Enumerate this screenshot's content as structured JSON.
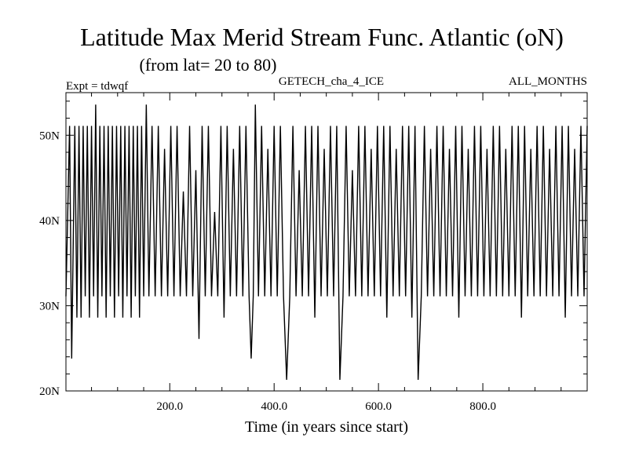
{
  "chart_data": {
    "type": "line",
    "title": "Latitude Max Merid Stream Func. Atlantic (oN)",
    "subtitle": "(from lat= 20 to 80)",
    "header_left": "Expt = tdwqf",
    "header_center": "GETECH_cha_4_ICE",
    "header_right": "ALL_MONTHS",
    "xlabel": "Time (in years since start)",
    "ylabel": "",
    "xlim": [
      1,
      1000
    ],
    "ylim": [
      20,
      55
    ],
    "xticks": [
      200,
      400,
      600,
      800
    ],
    "xtick_labels": [
      "200.0",
      "400.0",
      "600.0",
      "800.0"
    ],
    "yticks": [
      20,
      30,
      40,
      50
    ],
    "ytick_labels": [
      "20N",
      "30N",
      "40N",
      "50N"
    ],
    "grid": false,
    "levels_observed": [
      21.3,
      23.8,
      26.1,
      28.6,
      31.1,
      33.5,
      36.0,
      38.5,
      41.0,
      43.4,
      45.9,
      48.4,
      51.1,
      53.6
    ],
    "series": [
      {
        "values_approx": [
          [
            1,
            31.1
          ],
          [
            8,
            51.1
          ],
          [
            12,
            23.8
          ],
          [
            18,
            51.1
          ],
          [
            22,
            28.6
          ],
          [
            26,
            51.1
          ],
          [
            30,
            28.6
          ],
          [
            34,
            51.1
          ],
          [
            38,
            31.1
          ],
          [
            42,
            51.1
          ],
          [
            46,
            28.6
          ],
          [
            50,
            51.1
          ],
          [
            54,
            31.1
          ],
          [
            58,
            53.6
          ],
          [
            62,
            28.6
          ],
          [
            66,
            51.1
          ],
          [
            70,
            31.1
          ],
          [
            74,
            51.1
          ],
          [
            78,
            28.6
          ],
          [
            82,
            51.1
          ],
          [
            86,
            31.1
          ],
          [
            90,
            51.1
          ],
          [
            94,
            28.6
          ],
          [
            98,
            51.1
          ],
          [
            102,
            31.1
          ],
          [
            106,
            51.1
          ],
          [
            110,
            28.6
          ],
          [
            114,
            51.1
          ],
          [
            118,
            31.1
          ],
          [
            122,
            51.1
          ],
          [
            126,
            28.6
          ],
          [
            130,
            51.1
          ],
          [
            134,
            31.1
          ],
          [
            138,
            51.1
          ],
          [
            142,
            28.6
          ],
          [
            146,
            51.1
          ],
          [
            150,
            31.1
          ],
          [
            155,
            53.6
          ],
          [
            160,
            31.1
          ],
          [
            166,
            51.1
          ],
          [
            172,
            31.1
          ],
          [
            178,
            51.1
          ],
          [
            184,
            31.1
          ],
          [
            190,
            48.4
          ],
          [
            196,
            31.1
          ],
          [
            202,
            51.1
          ],
          [
            208,
            31.1
          ],
          [
            214,
            51.1
          ],
          [
            220,
            31.1
          ],
          [
            226,
            43.4
          ],
          [
            232,
            31.1
          ],
          [
            238,
            51.1
          ],
          [
            244,
            31.1
          ],
          [
            250,
            45.9
          ],
          [
            256,
            26.1
          ],
          [
            262,
            51.1
          ],
          [
            268,
            31.1
          ],
          [
            274,
            51.1
          ],
          [
            280,
            31.1
          ],
          [
            286,
            41.0
          ],
          [
            292,
            31.1
          ],
          [
            298,
            51.1
          ],
          [
            304,
            28.6
          ],
          [
            310,
            51.1
          ],
          [
            316,
            31.1
          ],
          [
            322,
            48.4
          ],
          [
            328,
            31.1
          ],
          [
            334,
            51.1
          ],
          [
            340,
            31.1
          ],
          [
            346,
            51.1
          ],
          [
            352,
            31.1
          ],
          [
            356,
            23.8
          ],
          [
            360,
            31.1
          ],
          [
            364,
            53.6
          ],
          [
            370,
            31.1
          ],
          [
            376,
            51.1
          ],
          [
            382,
            31.1
          ],
          [
            388,
            48.4
          ],
          [
            394,
            31.1
          ],
          [
            400,
            51.1
          ],
          [
            406,
            31.1
          ],
          [
            412,
            51.1
          ],
          [
            418,
            31.1
          ],
          [
            424,
            21.3
          ],
          [
            430,
            31.1
          ],
          [
            436,
            51.1
          ],
          [
            442,
            31.1
          ],
          [
            448,
            45.9
          ],
          [
            454,
            31.1
          ],
          [
            460,
            51.1
          ],
          [
            466,
            31.1
          ],
          [
            472,
            51.1
          ],
          [
            478,
            28.6
          ],
          [
            484,
            51.1
          ],
          [
            490,
            31.1
          ],
          [
            496,
            48.4
          ],
          [
            502,
            31.1
          ],
          [
            508,
            51.1
          ],
          [
            514,
            31.1
          ],
          [
            520,
            51.1
          ],
          [
            526,
            21.3
          ],
          [
            532,
            31.1
          ],
          [
            538,
            51.1
          ],
          [
            544,
            31.1
          ],
          [
            550,
            45.9
          ],
          [
            556,
            31.1
          ],
          [
            562,
            51.1
          ],
          [
            568,
            31.1
          ],
          [
            574,
            51.1
          ],
          [
            580,
            31.1
          ],
          [
            586,
            48.4
          ],
          [
            592,
            31.1
          ],
          [
            598,
            51.1
          ],
          [
            604,
            31.1
          ],
          [
            610,
            51.1
          ],
          [
            616,
            28.6
          ],
          [
            622,
            51.1
          ],
          [
            628,
            31.1
          ],
          [
            634,
            48.4
          ],
          [
            640,
            31.1
          ],
          [
            646,
            51.1
          ],
          [
            652,
            31.1
          ],
          [
            658,
            51.1
          ],
          [
            664,
            28.6
          ],
          [
            670,
            51.1
          ],
          [
            676,
            21.3
          ],
          [
            682,
            31.1
          ],
          [
            688,
            51.1
          ],
          [
            694,
            31.1
          ],
          [
            700,
            48.4
          ],
          [
            706,
            31.1
          ],
          [
            712,
            51.1
          ],
          [
            718,
            31.1
          ],
          [
            724,
            51.1
          ],
          [
            730,
            31.1
          ],
          [
            736,
            48.4
          ],
          [
            742,
            31.1
          ],
          [
            748,
            51.1
          ],
          [
            754,
            28.6
          ],
          [
            760,
            51.1
          ],
          [
            766,
            31.1
          ],
          [
            772,
            48.4
          ],
          [
            778,
            31.1
          ],
          [
            784,
            51.1
          ],
          [
            790,
            31.1
          ],
          [
            796,
            51.1
          ],
          [
            802,
            31.1
          ],
          [
            808,
            48.4
          ],
          [
            814,
            31.1
          ],
          [
            820,
            51.1
          ],
          [
            826,
            31.1
          ],
          [
            832,
            51.1
          ],
          [
            838,
            31.1
          ],
          [
            844,
            48.4
          ],
          [
            850,
            31.1
          ],
          [
            856,
            51.1
          ],
          [
            862,
            31.1
          ],
          [
            868,
            51.1
          ],
          [
            874,
            28.6
          ],
          [
            880,
            51.1
          ],
          [
            886,
            31.1
          ],
          [
            892,
            48.4
          ],
          [
            898,
            31.1
          ],
          [
            904,
            51.1
          ],
          [
            910,
            31.1
          ],
          [
            916,
            51.1
          ],
          [
            922,
            31.1
          ],
          [
            928,
            48.4
          ],
          [
            934,
            31.1
          ],
          [
            940,
            51.1
          ],
          [
            946,
            31.1
          ],
          [
            952,
            51.1
          ],
          [
            958,
            28.6
          ],
          [
            964,
            51.1
          ],
          [
            970,
            31.1
          ],
          [
            976,
            48.4
          ],
          [
            982,
            31.1
          ],
          [
            988,
            51.1
          ],
          [
            994,
            31.1
          ],
          [
            1000,
            51.1
          ]
        ]
      }
    ]
  }
}
